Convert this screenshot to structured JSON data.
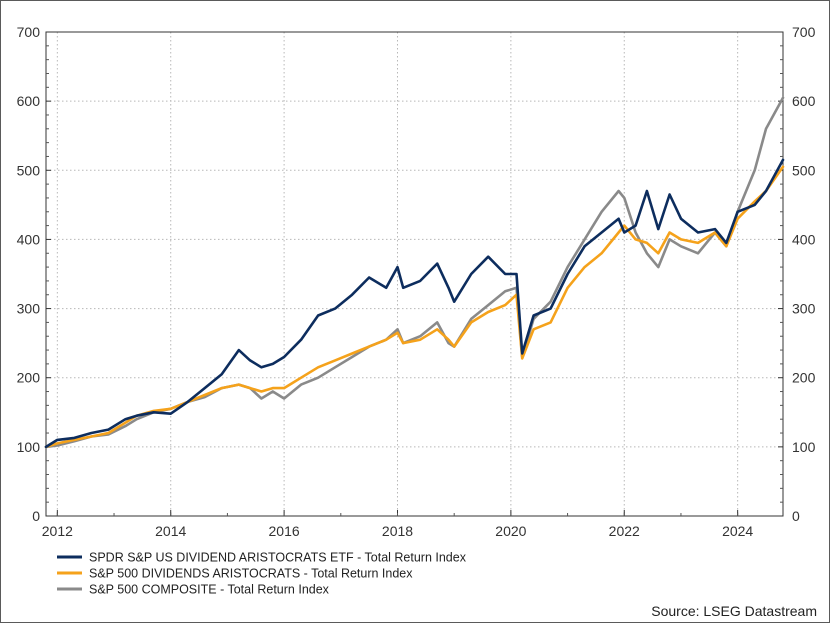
{
  "chart_data": {
    "type": "line",
    "title": "",
    "xlabel": "",
    "ylabel": "",
    "xlim": [
      2011.8,
      2024.8
    ],
    "ylim": [
      0,
      700
    ],
    "x_ticks": [
      "2012",
      "2014",
      "2016",
      "2018",
      "2020",
      "2022",
      "2024"
    ],
    "y_ticks": [
      "0",
      "100",
      "200",
      "300",
      "400",
      "500",
      "600",
      "700"
    ],
    "grid": true,
    "legend_position": "bottom-left",
    "source": "Source: LSEG Datastream",
    "series": [
      {
        "name": "SPDR S&P US DIVIDEND ARISTOCRATS ETF - Total Return Index",
        "color": "#0d2d5e",
        "x": [
          2011.8,
          2012.0,
          2012.3,
          2012.6,
          2012.9,
          2013.2,
          2013.4,
          2013.7,
          2014.0,
          2014.3,
          2014.6,
          2014.9,
          2015.2,
          2015.4,
          2015.6,
          2015.8,
          2016.0,
          2016.3,
          2016.6,
          2016.9,
          2017.2,
          2017.5,
          2017.8,
          2018.0,
          2018.1,
          2018.4,
          2018.7,
          2018.9,
          2019.0,
          2019.3,
          2019.6,
          2019.9,
          2020.1,
          2020.2,
          2020.4,
          2020.7,
          2021.0,
          2021.3,
          2021.6,
          2021.9,
          2022.0,
          2022.2,
          2022.4,
          2022.6,
          2022.8,
          2023.0,
          2023.3,
          2023.6,
          2023.8,
          2024.0,
          2024.3,
          2024.5,
          2024.8
        ],
        "y": [
          100,
          110,
          113,
          120,
          125,
          140,
          145,
          150,
          148,
          165,
          185,
          205,
          240,
          225,
          215,
          220,
          230,
          255,
          290,
          300,
          320,
          345,
          330,
          360,
          330,
          340,
          365,
          330,
          310,
          350,
          375,
          350,
          350,
          235,
          290,
          300,
          350,
          390,
          410,
          430,
          410,
          420,
          470,
          415,
          465,
          430,
          410,
          415,
          395,
          440,
          450,
          470,
          515
        ]
      },
      {
        "name": "S&P 500 DIVIDENDS ARISTOCRATS - Total Return Index",
        "color": "#f5a21b",
        "x": [
          2011.8,
          2012.0,
          2012.3,
          2012.6,
          2012.9,
          2013.2,
          2013.4,
          2013.7,
          2014.0,
          2014.3,
          2014.6,
          2014.9,
          2015.2,
          2015.4,
          2015.6,
          2015.8,
          2016.0,
          2016.3,
          2016.6,
          2016.9,
          2017.2,
          2017.5,
          2017.8,
          2018.0,
          2018.1,
          2018.4,
          2018.7,
          2018.9,
          2019.0,
          2019.3,
          2019.6,
          2019.9,
          2020.1,
          2020.2,
          2020.4,
          2020.7,
          2021.0,
          2021.3,
          2021.6,
          2021.9,
          2022.0,
          2022.2,
          2022.4,
          2022.6,
          2022.8,
          2023.0,
          2023.3,
          2023.6,
          2023.8,
          2024.0,
          2024.3,
          2024.5,
          2024.8
        ],
        "y": [
          100,
          105,
          110,
          115,
          120,
          135,
          145,
          152,
          155,
          165,
          175,
          185,
          190,
          185,
          180,
          185,
          185,
          200,
          215,
          225,
          235,
          245,
          255,
          265,
          250,
          255,
          270,
          255,
          245,
          280,
          295,
          305,
          320,
          228,
          270,
          280,
          330,
          360,
          380,
          410,
          420,
          400,
          395,
          380,
          410,
          400,
          395,
          410,
          390,
          430,
          455,
          470,
          505
        ]
      },
      {
        "name": "S&P 500 COMPOSITE - Total Return Index",
        "color": "#8a8a8a",
        "x": [
          2011.8,
          2012.0,
          2012.3,
          2012.6,
          2012.9,
          2013.2,
          2013.4,
          2013.7,
          2014.0,
          2014.3,
          2014.6,
          2014.9,
          2015.2,
          2015.4,
          2015.6,
          2015.8,
          2016.0,
          2016.3,
          2016.6,
          2016.9,
          2017.2,
          2017.5,
          2017.8,
          2018.0,
          2018.1,
          2018.4,
          2018.7,
          2018.9,
          2019.0,
          2019.3,
          2019.6,
          2019.9,
          2020.1,
          2020.2,
          2020.4,
          2020.7,
          2021.0,
          2021.3,
          2021.6,
          2021.9,
          2022.0,
          2022.2,
          2022.4,
          2022.6,
          2022.8,
          2023.0,
          2023.3,
          2023.6,
          2023.8,
          2024.0,
          2024.3,
          2024.5,
          2024.8
        ],
        "y": [
          100,
          102,
          108,
          115,
          118,
          130,
          140,
          150,
          155,
          165,
          172,
          185,
          190,
          185,
          170,
          180,
          170,
          190,
          200,
          215,
          230,
          245,
          255,
          270,
          250,
          260,
          280,
          250,
          245,
          285,
          305,
          325,
          330,
          230,
          285,
          310,
          360,
          400,
          440,
          470,
          460,
          410,
          380,
          360,
          400,
          390,
          380,
          410,
          390,
          440,
          500,
          560,
          605
        ]
      }
    ]
  }
}
